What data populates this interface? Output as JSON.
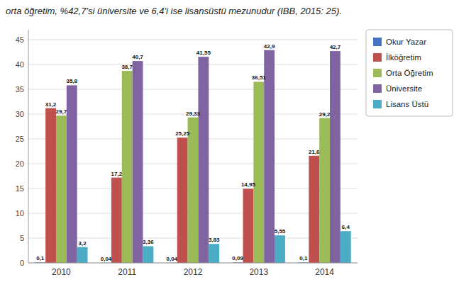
{
  "chart_data": {
    "type": "bar",
    "title": "orta öğretim, %42,7'si üniversite ve 6,4'i ise lisansüstü mezunudur (IBB, 2015: 25).",
    "categories": [
      "2010",
      "2011",
      "2012",
      "2013",
      "2014"
    ],
    "series": [
      {
        "name": "Okur Yazar",
        "color": "#4472C4",
        "values": [
          0.1,
          0.04,
          0.04,
          0.09,
          0.1
        ],
        "value_labels": [
          "0,1",
          "0,04",
          "0,04",
          "0,09",
          "0,1"
        ]
      },
      {
        "name": "İlköğretim",
        "color": "#C0504D",
        "values": [
          31.2,
          17.2,
          25.25,
          14.95,
          21.6
        ],
        "value_labels": [
          "31,2",
          "17,2",
          "25,25",
          "14,95",
          "21,6"
        ]
      },
      {
        "name": "Orta Öğretim",
        "color": "#9BBB59",
        "values": [
          29.7,
          38.7,
          29.33,
          36.51,
          29.2
        ],
        "value_labels": [
          "29,7",
          "38,7",
          "29,33",
          "36,51",
          "29,2"
        ]
      },
      {
        "name": "Üniversite",
        "color": "#8064A2",
        "values": [
          35.8,
          40.7,
          41.55,
          42.9,
          42.7
        ],
        "value_labels": [
          "35,8",
          "40,7",
          "41,55",
          "42,9",
          "42,7"
        ]
      },
      {
        "name": "Lisans Üstü",
        "color": "#4BACC6",
        "values": [
          3.2,
          3.36,
          3.83,
          5.55,
          6.4
        ],
        "value_labels": [
          "3,2",
          "3,36",
          "3,83",
          "5,55",
          "6,4"
        ]
      }
    ],
    "ylim": [
      0,
      47
    ],
    "yticks": [
      0,
      5,
      10,
      15,
      20,
      25,
      30,
      35,
      40,
      45
    ],
    "grid": true,
    "legend": "right",
    "data_labels": true
  }
}
